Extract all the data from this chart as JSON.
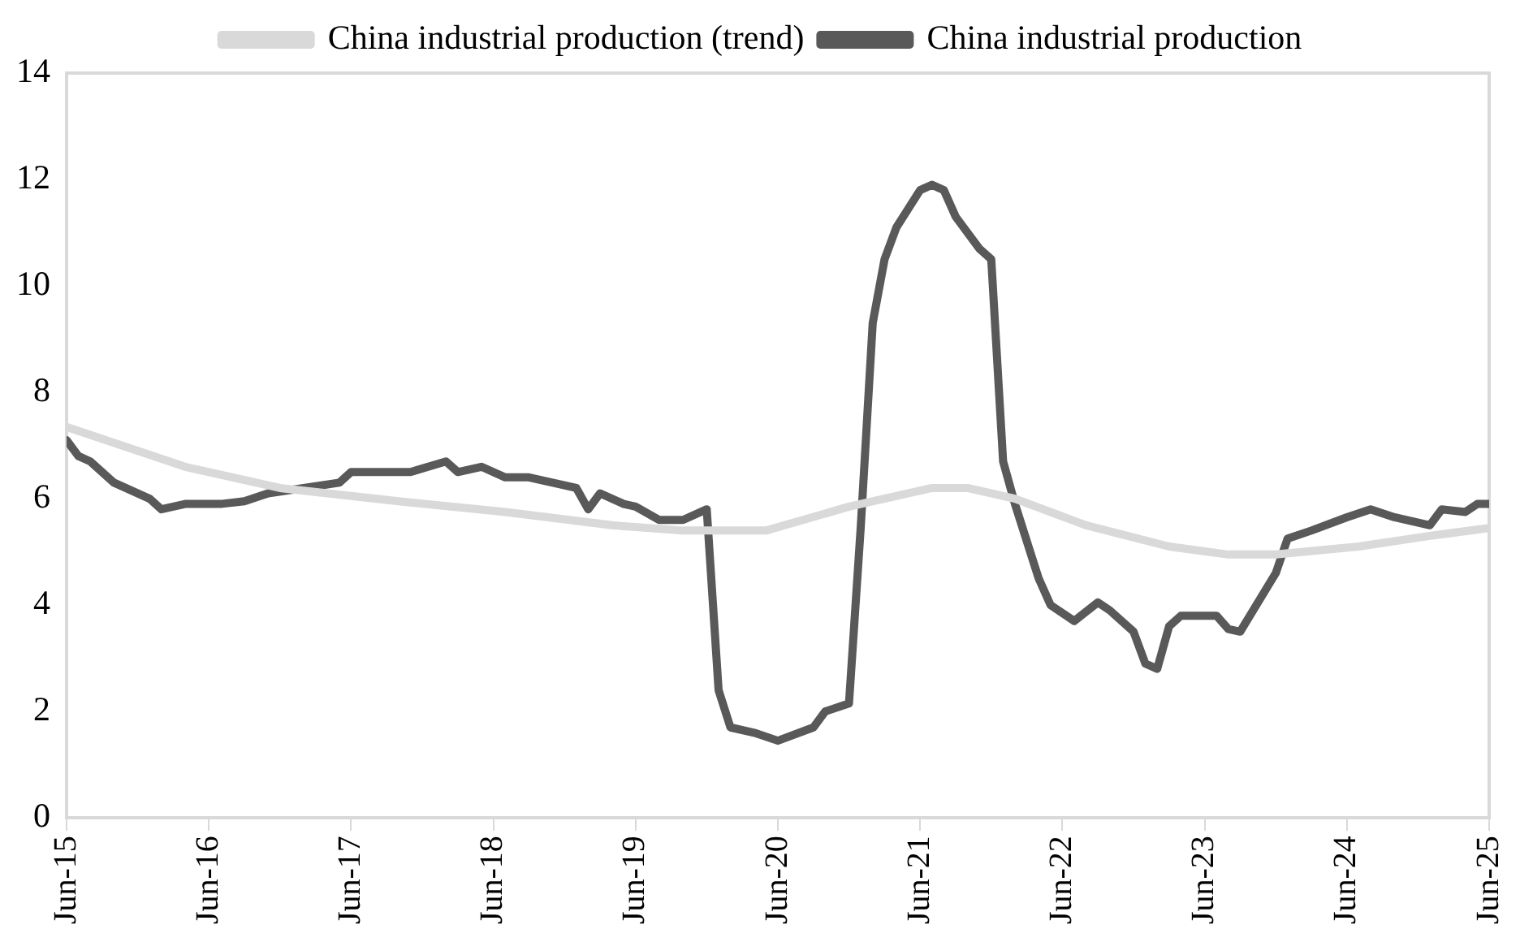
{
  "chart_data": {
    "type": "line",
    "xlim": [
      "2015-06",
      "2025-06"
    ],
    "xticks": [
      {
        "value": "2015-06",
        "label": "Jun-15"
      },
      {
        "value": "2016-06",
        "label": "Jun-16"
      },
      {
        "value": "2017-06",
        "label": "Jun-17"
      },
      {
        "value": "2018-06",
        "label": "Jun-18"
      },
      {
        "value": "2019-06",
        "label": "Jun-19"
      },
      {
        "value": "2020-06",
        "label": "Jun-20"
      },
      {
        "value": "2021-06",
        "label": "Jun-21"
      },
      {
        "value": "2022-06",
        "label": "Jun-22"
      },
      {
        "value": "2023-06",
        "label": "Jun-23"
      },
      {
        "value": "2024-06",
        "label": "Jun-24"
      },
      {
        "value": "2025-06",
        "label": "Jun-25"
      }
    ],
    "ylim": [
      0,
      14
    ],
    "yticks": [
      0,
      2,
      4,
      6,
      8,
      10,
      12,
      14
    ],
    "grid": false,
    "legend": "top",
    "marker": "none",
    "line_style": "solid",
    "series": [
      {
        "name": "China industrial production",
        "color": "#595959",
        "x": [
          "2015-06",
          "2015-07",
          "2015-08",
          "2015-10",
          "2016-01",
          "2016-02",
          "2016-04",
          "2016-07",
          "2016-09",
          "2016-11",
          "2017-02",
          "2017-05",
          "2017-06",
          "2017-11",
          "2018-02",
          "2018-03",
          "2018-05",
          "2018-07",
          "2018-09",
          "2019-01",
          "2019-02",
          "2019-03",
          "2019-05",
          "2019-06",
          "2019-08",
          "2019-10",
          "2019-12",
          "2020-01",
          "2020-02",
          "2020-04",
          "2020-06",
          "2020-09",
          "2020-10",
          "2020-12",
          "2021-01",
          "2021-02",
          "2021-03",
          "2021-04",
          "2021-06",
          "2021-07",
          "2021-08",
          "2021-09",
          "2021-11",
          "2021-12",
          "2022-01",
          "2022-02",
          "2022-04",
          "2022-05",
          "2022-07",
          "2022-09",
          "2022-10",
          "2022-12",
          "2023-01",
          "2023-02",
          "2023-03",
          "2023-04",
          "2023-07",
          "2023-08",
          "2023-09",
          "2023-12",
          "2024-01",
          "2024-03",
          "2024-06",
          "2024-08",
          "2024-10",
          "2025-01",
          "2025-02",
          "2025-04",
          "2025-05",
          "2025-06"
        ],
        "values": [
          7.1,
          6.8,
          6.7,
          6.3,
          6.0,
          5.8,
          5.9,
          5.9,
          5.95,
          6.1,
          6.2,
          6.3,
          6.5,
          6.5,
          6.7,
          6.5,
          6.6,
          6.4,
          6.4,
          6.2,
          5.8,
          6.1,
          5.9,
          5.85,
          5.6,
          5.6,
          5.8,
          2.4,
          1.7,
          1.6,
          1.45,
          1.7,
          2.0,
          2.15,
          5.5,
          9.3,
          10.5,
          11.1,
          11.8,
          11.9,
          11.8,
          11.3,
          10.7,
          10.5,
          6.7,
          5.9,
          4.5,
          4.0,
          3.7,
          4.05,
          3.9,
          3.5,
          2.9,
          2.8,
          3.6,
          3.8,
          3.8,
          3.55,
          3.5,
          4.6,
          5.25,
          5.4,
          5.65,
          5.8,
          5.65,
          5.5,
          5.8,
          5.75,
          5.9,
          5.9
        ]
      },
      {
        "name": "China industrial production (trend)",
        "color": "#d9d9d9",
        "x": [
          "2015-06",
          "2016-04",
          "2016-12",
          "2017-10",
          "2018-07",
          "2019-04",
          "2019-10",
          "2020-05",
          "2020-12",
          "2021-07",
          "2021-10",
          "2022-02",
          "2022-08",
          "2023-03",
          "2023-08",
          "2023-12",
          "2024-07",
          "2025-01",
          "2025-06"
        ],
        "values": [
          7.35,
          6.6,
          6.2,
          5.95,
          5.75,
          5.5,
          5.4,
          5.4,
          5.85,
          6.2,
          6.2,
          6.0,
          5.5,
          5.1,
          4.95,
          4.95,
          5.1,
          5.3,
          5.45
        ]
      }
    ]
  }
}
